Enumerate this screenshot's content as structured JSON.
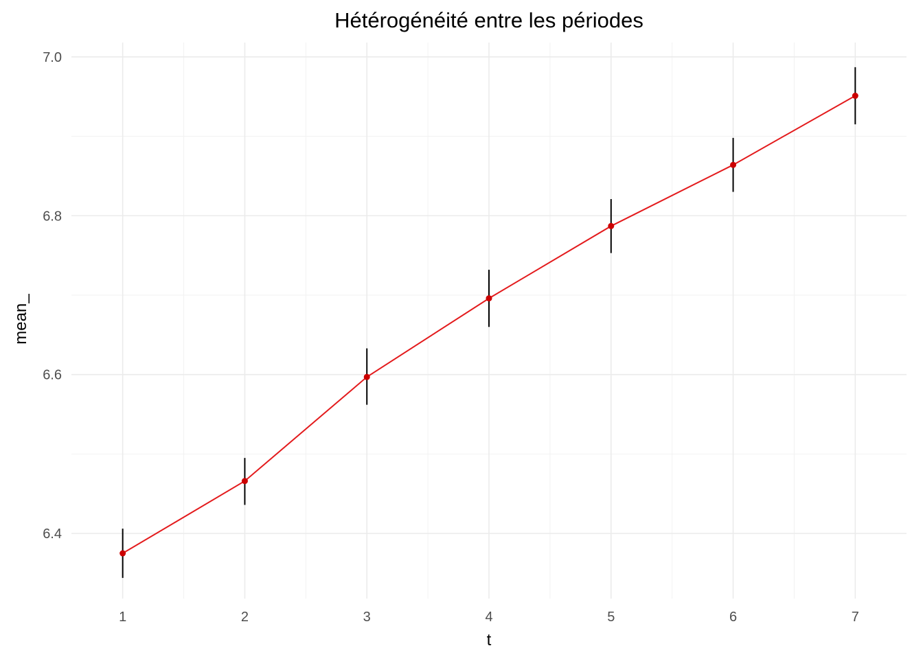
{
  "chart_data": {
    "type": "line",
    "title": "Hétérogénéité entre les périodes",
    "xlabel": "t",
    "ylabel": "mean_",
    "x": [
      1,
      2,
      3,
      4,
      5,
      6,
      7
    ],
    "series": [
      {
        "values": [
          6.375,
          6.466,
          6.597,
          6.696,
          6.787,
          6.864,
          6.951
        ],
        "lower": [
          6.344,
          6.436,
          6.562,
          6.66,
          6.753,
          6.83,
          6.915
        ],
        "upper": [
          6.406,
          6.495,
          6.633,
          6.732,
          6.821,
          6.898,
          6.987
        ],
        "line_color": "#e31a1c",
        "point_color": "#cc0000",
        "errorbar_color": "#000000"
      }
    ],
    "xticks": [
      "1",
      "2",
      "3",
      "4",
      "5",
      "6",
      "7"
    ],
    "yticks": [
      "6.4",
      "6.6",
      "6.8",
      "7.0"
    ],
    "ytick_values": [
      6.4,
      6.6,
      6.8,
      7.0
    ],
    "xlim": [
      0.58,
      7.42
    ],
    "ylim": [
      6.318,
      7.018
    ],
    "grid": true,
    "legend": "none"
  }
}
